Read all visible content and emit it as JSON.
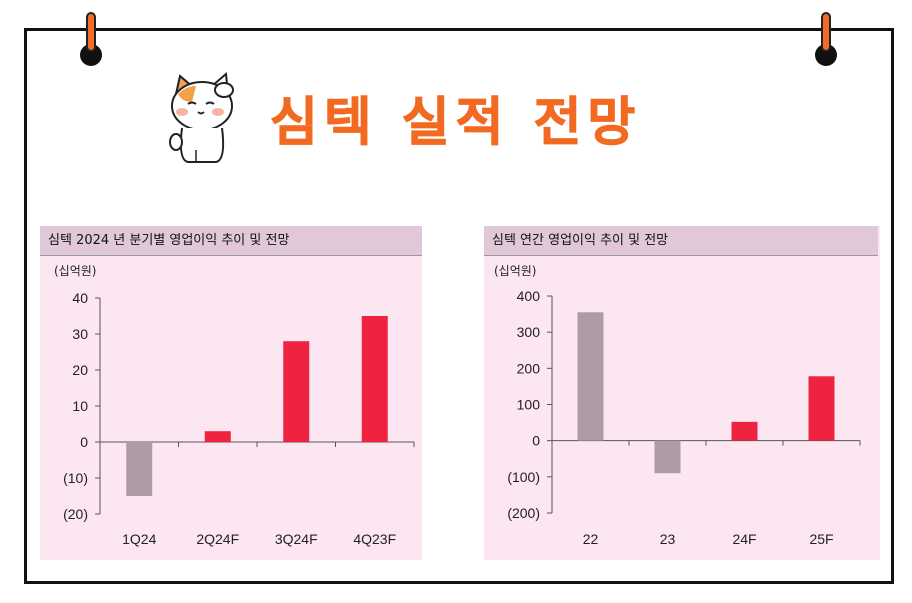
{
  "page": {
    "title": "심텍 실적 전망"
  },
  "colors": {
    "accent": "#f26a21",
    "negative_bar": "#ad9ca6",
    "positive_bar": "#ee2340",
    "panel_bg": "#fbe6f2",
    "header_bg": "#e1c8d8"
  },
  "icons": {
    "mascot": "saluting-cat-mascot-icon",
    "binder_rings": "binder-ring-icon"
  },
  "chart_data": [
    {
      "type": "bar",
      "title": "심텍 2024 년 분기별 영업이익 추이 및 전망",
      "unit": "(십억원)",
      "categories": [
        "1Q24",
        "2Q24F",
        "3Q24F",
        "4Q23F"
      ],
      "values": [
        -15,
        3,
        28,
        35
      ],
      "ylim": [
        -20,
        40
      ],
      "ticks": [
        40,
        30,
        20,
        10,
        0,
        -10,
        -20
      ],
      "tick_labels": [
        "40",
        "30",
        "20",
        "10",
        "0",
        "(10)",
        "(20)"
      ],
      "bar_colors": [
        "#ad9ca6",
        "#ee2340",
        "#ee2340",
        "#ee2340"
      ],
      "grid": false,
      "legend": "none"
    },
    {
      "type": "bar",
      "title": "심텍 연간 영업이익 추이 및 전망",
      "unit": "(십억원)",
      "categories": [
        "22",
        "23",
        "24F",
        "25F"
      ],
      "values": [
        355,
        -90,
        52,
        178
      ],
      "ylim": [
        -200,
        400
      ],
      "ticks": [
        400,
        300,
        200,
        100,
        0,
        -100,
        -200
      ],
      "tick_labels": [
        "400",
        "300",
        "200",
        "100",
        "0",
        "(100)",
        "(200)"
      ],
      "bar_colors": [
        "#ad9ca6",
        "#ad9ca6",
        "#ee2340",
        "#ee2340"
      ],
      "grid": false,
      "legend": "none"
    }
  ]
}
